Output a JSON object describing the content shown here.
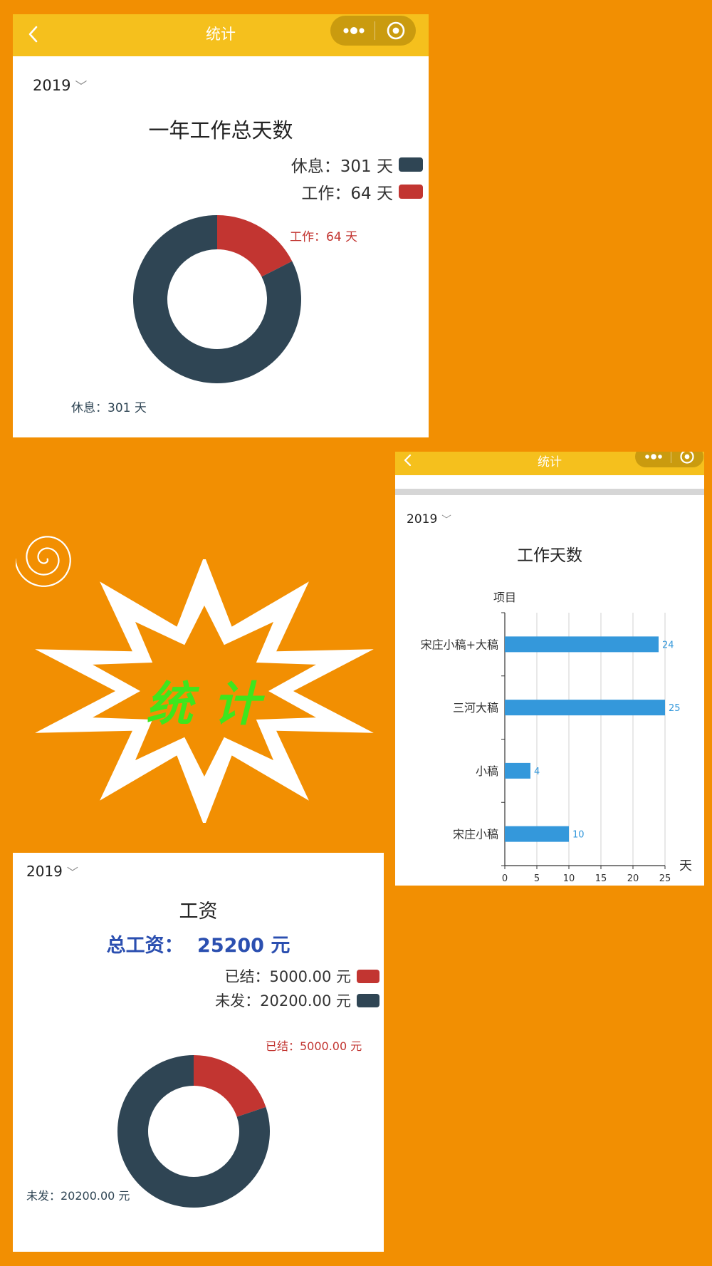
{
  "app": {
    "nav_title": "统计",
    "back_icon": "chevron-left-icon",
    "more_icon": "more-dots-icon",
    "close_icon": "capsule-close-icon"
  },
  "colors": {
    "background": "#f28f02",
    "navbar": "#f5c01d",
    "pie_red": "#c23531",
    "pie_dark": "#2f4554",
    "bar_blue": "#3498db",
    "salary_blue": "#2b4fb0",
    "decoration_text": "#3ee61d"
  },
  "decoration": {
    "text": "统计",
    "spiral_icon": "spiral-icon",
    "star_icon": "star-burst-icon"
  },
  "days_card": {
    "year": "2019",
    "title": "一年工作总天数",
    "legend": [
      {
        "label": "休息：301 天",
        "color": "#2f4554"
      },
      {
        "label": "工作：64 天",
        "color": "#c23531"
      }
    ],
    "slice_labels": {
      "work": "工作：64 天",
      "rest": "休息：301 天"
    }
  },
  "project_card": {
    "nav_title": "统计",
    "year": "2019",
    "title": "工作天数",
    "y_axis_name": "项目",
    "x_axis_name": "天"
  },
  "salary_card": {
    "year": "2019",
    "title": "工资",
    "total_label": "总工资：",
    "total_value": "25200 元",
    "legend": [
      {
        "label": "已结：5000.00 元",
        "color": "#c23531"
      },
      {
        "label": "未发：20200.00 元",
        "color": "#2f4554"
      }
    ],
    "slice_labels": {
      "paid": "已结：5000.00 元",
      "unpaid": "未发：20200.00 元"
    }
  },
  "chart_data": [
    {
      "type": "pie",
      "title": "一年工作总天数",
      "slices": [
        {
          "label": "工作",
          "value": 64,
          "unit": "天",
          "color": "#c23531"
        },
        {
          "label": "休息",
          "value": 301,
          "unit": "天",
          "color": "#2f4554"
        }
      ]
    },
    {
      "type": "bar",
      "orientation": "horizontal",
      "title": "工作天数",
      "ylabel": "项目",
      "xlabel": "天",
      "categories": [
        "宋庄小稿+大稿",
        "三河大稿",
        "小稿",
        "宋庄小稿"
      ],
      "values": [
        24,
        25,
        4,
        10
      ],
      "xlim": [
        0,
        25
      ],
      "x_ticks": [
        0,
        5,
        10,
        15,
        20,
        25
      ],
      "grid": true,
      "color": "#3498db"
    },
    {
      "type": "pie",
      "title": "工资",
      "slices": [
        {
          "label": "已结",
          "value": 5000,
          "unit": "元",
          "color": "#c23531"
        },
        {
          "label": "未发",
          "value": 20200,
          "unit": "元",
          "color": "#2f4554"
        }
      ]
    }
  ]
}
